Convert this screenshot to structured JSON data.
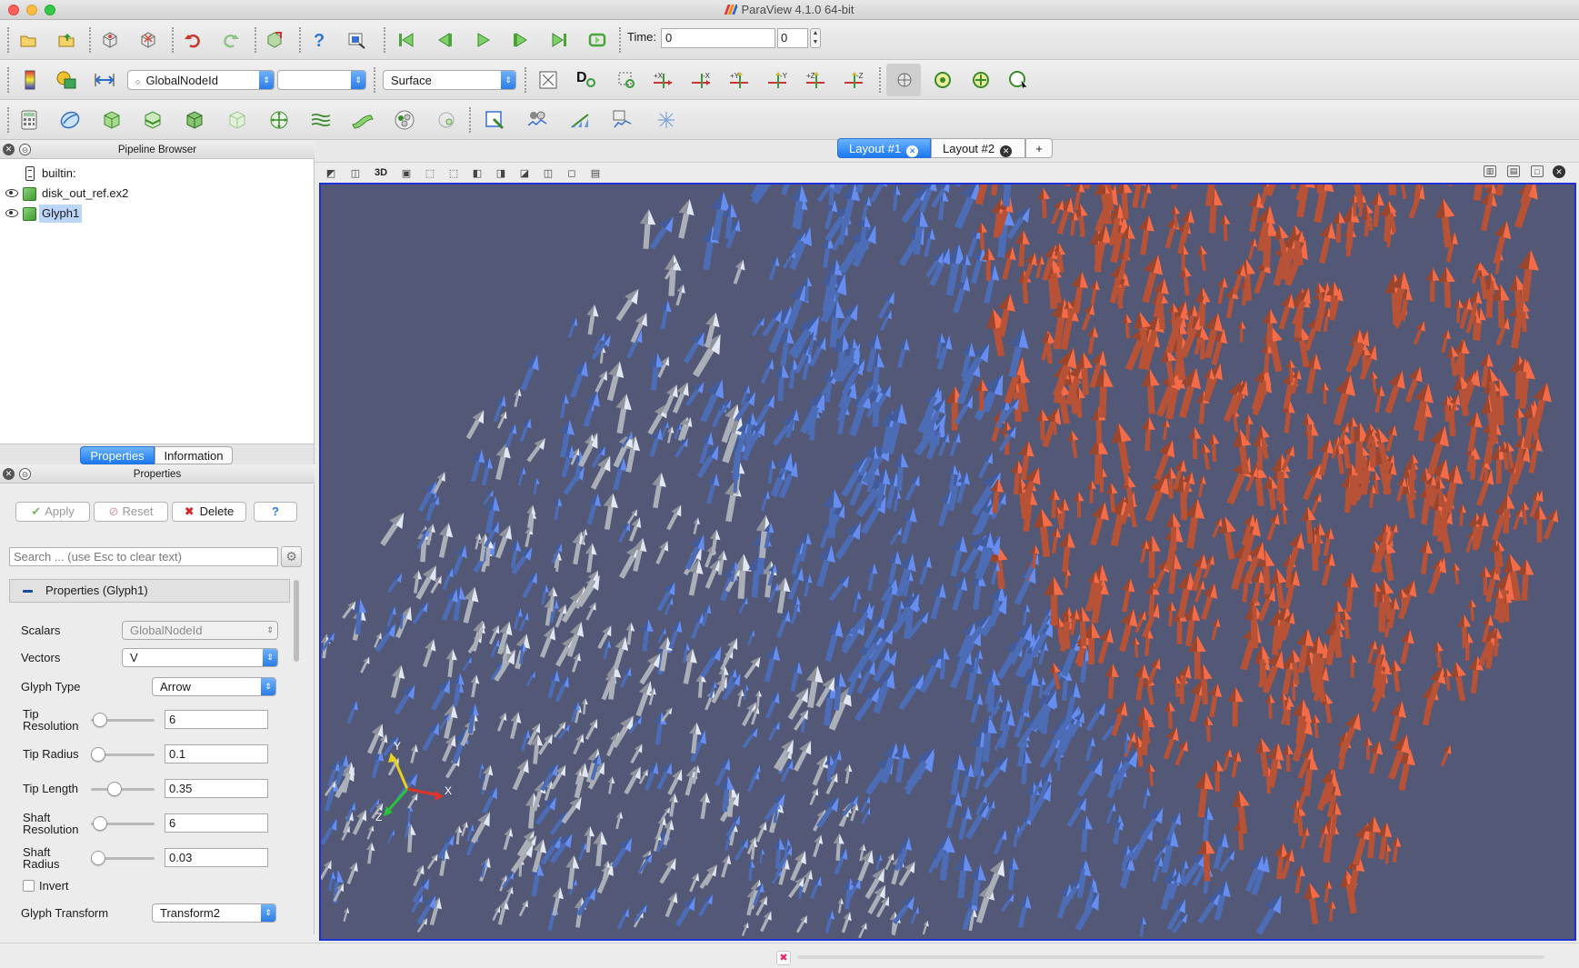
{
  "window": {
    "title": "ParaView 4.1.0 64-bit"
  },
  "toolbar1": {
    "time_label": "Time:",
    "time_value": "0",
    "timestep_value": "0"
  },
  "toolbar2": {
    "color_by": "GlobalNodeId",
    "component": "",
    "representation": "Surface"
  },
  "pipeline": {
    "title": "Pipeline Browser",
    "items": [
      {
        "label": "builtin:"
      },
      {
        "label": "disk_out_ref.ex2"
      },
      {
        "label": "Glyph1"
      }
    ]
  },
  "panel_tabs": [
    {
      "label": "Properties"
    },
    {
      "label": "Information"
    }
  ],
  "properties": {
    "title": "Properties",
    "apply_label": "Apply",
    "reset_label": "Reset",
    "delete_label": "Delete",
    "help_label": "?",
    "search_placeholder": "Search ... (use Esc to clear text)",
    "group_title": "Properties (Glyph1)",
    "scalars_label": "Scalars",
    "scalars_value": "GlobalNodeId",
    "vectors_label": "Vectors",
    "vectors_value": "V",
    "glyph_type_label": "Glyph Type",
    "glyph_type_value": "Arrow",
    "tip_resolution_label_1": "Tip",
    "tip_resolution_label_2": "Resolution",
    "tip_resolution_value": "6",
    "tip_radius_label": "Tip Radius",
    "tip_radius_value": "0.1",
    "tip_length_label": "Tip Length",
    "tip_length_value": "0.35",
    "shaft_resolution_label_1": "Shaft",
    "shaft_resolution_label_2": "Resolution",
    "shaft_resolution_value": "6",
    "shaft_radius_label_1": "Shaft",
    "shaft_radius_label_2": "Radius",
    "shaft_radius_value": "0.03",
    "invert_label": "Invert",
    "glyph_transform_label": "Glyph Transform",
    "glyph_transform_value": "Transform2"
  },
  "layouts": {
    "tabs": [
      {
        "label": "Layout #1"
      },
      {
        "label": "Layout #2"
      }
    ],
    "add_label": "+"
  },
  "view": {
    "mode_label": "3D",
    "background_color": "#525875",
    "axes": {
      "x": "X",
      "y": "Y",
      "z": "Z"
    }
  },
  "colors": {
    "accent": "#1b78f0",
    "glyph_blue": "#5b7fd6",
    "glyph_red": "#d9603f",
    "glyph_white": "#c9ced8"
  },
  "icons": [
    "open-icon",
    "recent-icon",
    "connect-icon",
    "disconnect-icon",
    "undo-icon",
    "redo-icon",
    "reset-session-icon",
    "help-icon",
    "pick-center-icon",
    "first-frame-icon",
    "prev-frame-icon",
    "play-icon",
    "next-frame-icon",
    "last-frame-icon",
    "loop-icon"
  ]
}
